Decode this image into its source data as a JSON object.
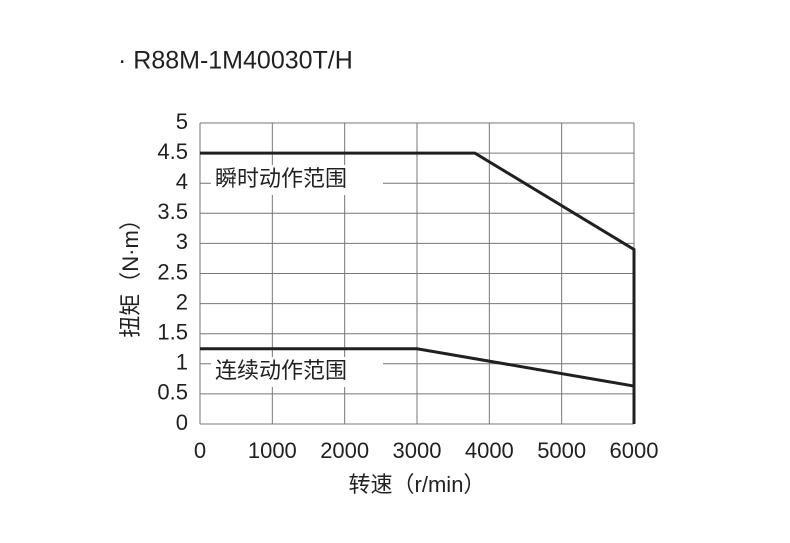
{
  "chart_data": {
    "type": "line",
    "title": "· R88M-1M40030T/H",
    "x_label": "转速（r/min）",
    "y_label": "扭矩（N·m）",
    "series": [
      {
        "name": "瞬时动作范围",
        "color": "#231f20",
        "x": [
          0,
          3800,
          6000,
          6000
        ],
        "values": [
          4.5,
          4.5,
          2.9,
          0
        ]
      },
      {
        "name": "连续动作范围",
        "color": "#231f20",
        "x": [
          0,
          3000,
          6000
        ],
        "values": [
          1.25,
          1.25,
          0.63
        ]
      }
    ],
    "xlim": [
      0,
      6000
    ],
    "xticks": [
      0,
      1000,
      2000,
      3000,
      4000,
      5000,
      6000
    ],
    "ylim": [
      0,
      5
    ],
    "yticks": [
      0,
      0.5,
      1,
      1.5,
      2,
      2.5,
      3,
      3.5,
      4,
      4.5,
      5
    ],
    "grid": true
  }
}
